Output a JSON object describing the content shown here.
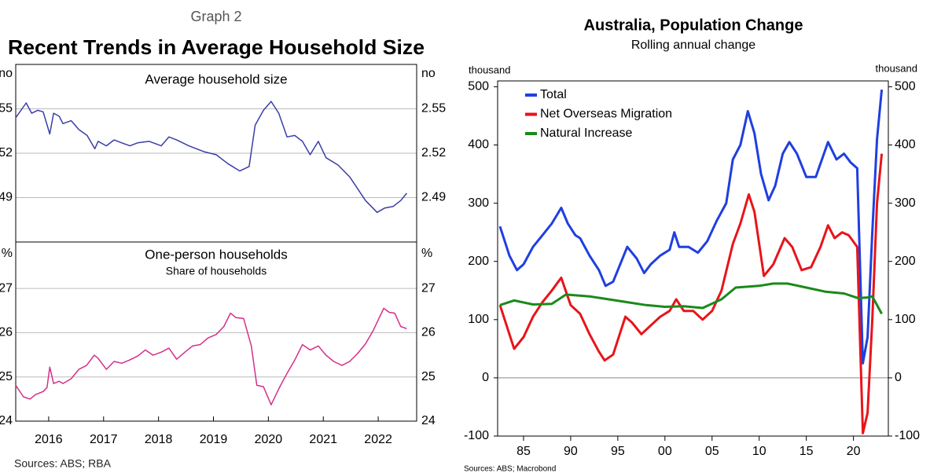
{
  "chart_data": [
    {
      "type": "line",
      "graph_label": "Graph 2",
      "title": "Recent Trends in Average Household Size",
      "panel_title": "Average household size",
      "ylabel": "no",
      "color": "#3a3ea6",
      "xlim": [
        2015.4,
        2022.7
      ],
      "ylim": [
        2.46,
        2.58
      ],
      "yticks": [
        2.49,
        2.52,
        2.55
      ],
      "grid": true,
      "x": [
        2015.4,
        2015.59,
        2015.69,
        2015.8,
        2015.9,
        2016.02,
        2016.09,
        2016.19,
        2016.26,
        2016.41,
        2016.55,
        2016.7,
        2016.84,
        2016.9,
        2017.05,
        2017.19,
        2017.33,
        2017.48,
        2017.62,
        2017.83,
        2018.05,
        2018.19,
        2018.33,
        2018.55,
        2018.83,
        2019.05,
        2019.26,
        2019.48,
        2019.65,
        2019.76,
        2019.91,
        2020.05,
        2020.19,
        2020.34,
        2020.48,
        2020.62,
        2020.76,
        2020.91,
        2021.05,
        2021.27,
        2021.48,
        2021.77,
        2021.98,
        2022.12,
        2022.27,
        2022.41,
        2022.52
      ],
      "values": [
        2.544,
        2.554,
        2.547,
        2.549,
        2.548,
        2.533,
        2.547,
        2.545,
        2.54,
        2.542,
        2.536,
        2.532,
        2.523,
        2.528,
        2.525,
        2.529,
        2.527,
        2.525,
        2.527,
        2.528,
        2.525,
        2.531,
        2.529,
        2.525,
        2.521,
        2.519,
        2.513,
        2.508,
        2.511,
        2.539,
        2.549,
        2.555,
        2.547,
        2.531,
        2.532,
        2.528,
        2.519,
        2.528,
        2.517,
        2.512,
        2.504,
        2.488,
        2.48,
        2.483,
        2.484,
        2.488,
        2.493
      ]
    },
    {
      "type": "line",
      "panel_title": "One-person households",
      "panel_subtitle": "Share of households",
      "ylabel": "%",
      "sources": "Sources: ABS; RBA",
      "color": "#d42f88",
      "xlim": [
        2015.4,
        2022.7
      ],
      "xticks": [
        2016,
        2017,
        2018,
        2019,
        2020,
        2021,
        2022
      ],
      "ylim": [
        24,
        28.05
      ],
      "yticks": [
        24,
        25,
        26,
        27
      ],
      "grid": true,
      "x": [
        2015.4,
        2015.54,
        2015.66,
        2015.76,
        2015.9,
        2015.97,
        2016.02,
        2016.09,
        2016.19,
        2016.26,
        2016.41,
        2016.55,
        2016.69,
        2016.83,
        2016.9,
        2017.05,
        2017.19,
        2017.33,
        2017.47,
        2017.62,
        2017.76,
        2017.9,
        2018.05,
        2018.19,
        2018.33,
        2018.48,
        2018.62,
        2018.76,
        2018.9,
        2019.05,
        2019.19,
        2019.31,
        2019.41,
        2019.55,
        2019.69,
        2019.79,
        2019.91,
        2020.05,
        2020.19,
        2020.34,
        2020.48,
        2020.62,
        2020.76,
        2020.91,
        2021.05,
        2021.19,
        2021.34,
        2021.48,
        2021.62,
        2021.77,
        2021.91,
        2022.1,
        2022.2,
        2022.3,
        2022.41,
        2022.52
      ],
      "values": [
        24.81,
        24.55,
        24.5,
        24.6,
        24.67,
        24.76,
        25.22,
        24.85,
        24.9,
        24.85,
        24.96,
        25.17,
        25.26,
        25.49,
        25.42,
        25.17,
        25.35,
        25.31,
        25.38,
        25.47,
        25.61,
        25.49,
        25.56,
        25.65,
        25.4,
        25.56,
        25.7,
        25.73,
        25.88,
        25.96,
        26.14,
        26.44,
        26.34,
        26.32,
        25.7,
        24.81,
        24.78,
        24.37,
        24.73,
        25.08,
        25.38,
        25.73,
        25.61,
        25.7,
        25.49,
        25.35,
        25.26,
        25.35,
        25.52,
        25.75,
        26.05,
        26.55,
        26.46,
        26.44,
        26.14,
        26.09
      ]
    },
    {
      "type": "line",
      "title": "Australia, Population Change",
      "subtitle": "Rolling annual change",
      "ylabel": "thousand",
      "sources": "Sources: ABS; Macrobond",
      "legend": "upper left",
      "xlim": [
        1982.25,
        2023.7
      ],
      "xticks": [
        {
          "value": 1985,
          "label": "85"
        },
        {
          "value": 1990,
          "label": "90"
        },
        {
          "value": 1995,
          "label": "95"
        },
        {
          "value": 2000,
          "label": "00"
        },
        {
          "value": 2005,
          "label": "05"
        },
        {
          "value": 2010,
          "label": "10"
        },
        {
          "value": 2015,
          "label": "15"
        },
        {
          "value": 2020,
          "label": "20"
        }
      ],
      "ylim": [
        -100,
        510
      ],
      "yticks": [
        -100,
        0,
        100,
        200,
        300,
        400,
        500
      ],
      "grid": false,
      "series": [
        {
          "name": "Total",
          "color": "#1f3fe0",
          "x": [
            1982.5,
            1983.5,
            1984.3,
            1985,
            1986,
            1987,
            1988,
            1989,
            1989.7,
            1990.5,
            1991,
            1992,
            1993,
            1993.7,
            1994.5,
            1995,
            1996,
            1997,
            1997.8,
            1998.5,
            1999.5,
            2000.5,
            2001,
            2001.5,
            2002.5,
            2003.5,
            2004.5,
            2005.5,
            2006.5,
            2007.2,
            2008,
            2008.8,
            2009.5,
            2010.2,
            2011,
            2011.7,
            2012.5,
            2013.2,
            2014,
            2015,
            2016,
            2017.3,
            2018.2,
            2019,
            2019.7,
            2020.4,
            2021,
            2021.5,
            2022,
            2022.5,
            2023
          ],
          "values": [
            260,
            210,
            185,
            195,
            225,
            245,
            265,
            292,
            265,
            245,
            240,
            210,
            185,
            158,
            165,
            185,
            225,
            205,
            180,
            195,
            210,
            220,
            250,
            225,
            225,
            215,
            235,
            270,
            300,
            375,
            400,
            458,
            420,
            350,
            305,
            330,
            385,
            405,
            385,
            345,
            345,
            405,
            375,
            385,
            370,
            360,
            25,
            70,
            250,
            410,
            495
          ]
        },
        {
          "name": "Net Overseas Migration",
          "color": "#e8141a",
          "x": [
            1982.5,
            1983,
            1984,
            1985,
            1986,
            1987,
            1988,
            1989,
            1990,
            1991,
            1992,
            1993,
            1993.6,
            1994.5,
            1995,
            1995.8,
            1996.5,
            1997.5,
            1998.5,
            1999.5,
            2000.5,
            2001.2,
            2002,
            2003,
            2004,
            2005,
            2006,
            2007.2,
            2008,
            2008.9,
            2009.5,
            2010.5,
            2011.5,
            2012.7,
            2013.5,
            2014.5,
            2015.5,
            2016.5,
            2017.3,
            2018,
            2018.8,
            2019.5,
            2020.4,
            2021,
            2021.5,
            2022,
            2022.5,
            2023
          ],
          "values": [
            125,
            100,
            50,
            70,
            105,
            130,
            150,
            172,
            125,
            110,
            75,
            45,
            30,
            40,
            65,
            105,
            95,
            75,
            90,
            105,
            115,
            135,
            115,
            115,
            100,
            115,
            150,
            230,
            265,
            315,
            285,
            175,
            195,
            240,
            225,
            185,
            190,
            225,
            262,
            240,
            250,
            245,
            225,
            -95,
            -60,
            100,
            300,
            385
          ]
        },
        {
          "name": "Natural Increase",
          "color": "#1a8a1a",
          "x": [
            1982.5,
            1984,
            1986,
            1988,
            1989.5,
            1992,
            1994,
            1996,
            1998,
            2000,
            2002,
            2004,
            2006,
            2007.5,
            2010,
            2011.5,
            2013,
            2015,
            2017,
            2019,
            2020.5,
            2021.5,
            2022,
            2023
          ],
          "values": [
            125,
            133,
            126,
            127,
            143,
            140,
            135,
            130,
            125,
            122,
            123,
            120,
            135,
            155,
            158,
            162,
            162,
            155,
            148,
            145,
            137,
            138,
            140,
            110
          ]
        }
      ]
    }
  ]
}
